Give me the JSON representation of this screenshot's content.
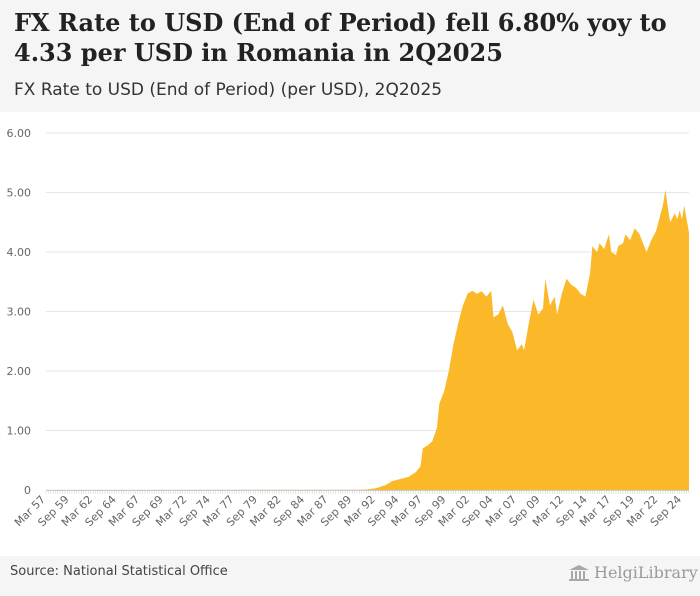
{
  "header": {
    "title": "FX Rate to USD (End of Period) fell 6.80% yoy to 4.33 per USD in Romania in 2Q2025",
    "subtitle": "FX Rate to USD (End of Period) (per USD), 2Q2025"
  },
  "footer": {
    "source": "Source: National Statistical Office",
    "logo_text": "HelgiLibrary",
    "logo_icon": "library-building-icon"
  },
  "colors": {
    "area": "#fbb829",
    "grid": "#e6e6e6",
    "axis_text": "#666666"
  },
  "chart_data": {
    "type": "area",
    "title": "FX Rate to USD (End of Period) (per USD), 2Q2025",
    "xlabel": "",
    "ylabel": "",
    "ylim": [
      0,
      6
    ],
    "yticks": [
      0,
      1,
      2,
      3,
      4,
      5,
      6
    ],
    "ytick_labels": [
      "0",
      "1.00",
      "2.00",
      "3.00",
      "4.00",
      "5.00",
      "6.00"
    ],
    "xtick_labels": [
      "Mar 57",
      "Sep 59",
      "Mar 62",
      "Sep 64",
      "Mar 67",
      "Sep 69",
      "Mar 72",
      "Sep 74",
      "Mar 77",
      "Sep 79",
      "Mar 82",
      "Sep 84",
      "Mar 87",
      "Sep 89",
      "Mar 92",
      "Sep 94",
      "Mar 97",
      "Sep 99",
      "Mar 02",
      "Sep 04",
      "Mar 07",
      "Sep 09",
      "Mar 12",
      "Sep 14",
      "Mar 17",
      "Sep 19",
      "Mar 22",
      "Sep 24"
    ],
    "x_start": 1957.0,
    "x_end": 2025.25,
    "series": [
      {
        "name": "FX Rate to USD (End of Period)",
        "points": [
          [
            1957.0,
            0.0
          ],
          [
            1990.0,
            0.002
          ],
          [
            1991.0,
            0.008
          ],
          [
            1992.0,
            0.03
          ],
          [
            1993.0,
            0.08
          ],
          [
            1993.75,
            0.15
          ],
          [
            1994.5,
            0.18
          ],
          [
            1995.5,
            0.22
          ],
          [
            1996.25,
            0.3
          ],
          [
            1996.75,
            0.4
          ],
          [
            1997.0,
            0.7
          ],
          [
            1997.5,
            0.75
          ],
          [
            1998.0,
            0.82
          ],
          [
            1998.5,
            1.05
          ],
          [
            1998.75,
            1.45
          ],
          [
            1999.25,
            1.65
          ],
          [
            1999.75,
            2.0
          ],
          [
            2000.25,
            2.45
          ],
          [
            2000.75,
            2.8
          ],
          [
            2001.25,
            3.1
          ],
          [
            2001.75,
            3.3
          ],
          [
            2002.25,
            3.35
          ],
          [
            2002.75,
            3.3
          ],
          [
            2003.25,
            3.34
          ],
          [
            2003.75,
            3.25
          ],
          [
            2004.25,
            3.35
          ],
          [
            2004.5,
            2.9
          ],
          [
            2005.0,
            2.95
          ],
          [
            2005.5,
            3.1
          ],
          [
            2006.0,
            2.8
          ],
          [
            2006.5,
            2.65
          ],
          [
            2007.0,
            2.35
          ],
          [
            2007.5,
            2.45
          ],
          [
            2007.75,
            2.35
          ],
          [
            2008.25,
            2.8
          ],
          [
            2008.75,
            3.2
          ],
          [
            2009.25,
            2.95
          ],
          [
            2009.75,
            3.05
          ],
          [
            2010.0,
            3.55
          ],
          [
            2010.5,
            3.1
          ],
          [
            2011.0,
            3.25
          ],
          [
            2011.25,
            2.95
          ],
          [
            2011.75,
            3.3
          ],
          [
            2012.25,
            3.55
          ],
          [
            2012.75,
            3.45
          ],
          [
            2013.25,
            3.4
          ],
          [
            2013.75,
            3.3
          ],
          [
            2014.25,
            3.25
          ],
          [
            2014.75,
            3.65
          ],
          [
            2015.0,
            4.1
          ],
          [
            2015.5,
            4.0
          ],
          [
            2015.75,
            4.15
          ],
          [
            2016.25,
            4.05
          ],
          [
            2016.75,
            4.3
          ],
          [
            2017.0,
            4.0
          ],
          [
            2017.5,
            3.95
          ],
          [
            2017.75,
            4.1
          ],
          [
            2018.25,
            4.15
          ],
          [
            2018.5,
            4.3
          ],
          [
            2019.0,
            4.2
          ],
          [
            2019.5,
            4.4
          ],
          [
            2020.0,
            4.3
          ],
          [
            2020.5,
            4.1
          ],
          [
            2020.75,
            4.0
          ],
          [
            2021.25,
            4.2
          ],
          [
            2021.75,
            4.35
          ],
          [
            2022.0,
            4.5
          ],
          [
            2022.5,
            4.8
          ],
          [
            2022.75,
            5.05
          ],
          [
            2023.0,
            4.75
          ],
          [
            2023.25,
            4.5
          ],
          [
            2023.75,
            4.65
          ],
          [
            2024.0,
            4.55
          ],
          [
            2024.25,
            4.7
          ],
          [
            2024.5,
            4.55
          ],
          [
            2024.75,
            4.78
          ],
          [
            2025.0,
            4.55
          ],
          [
            2025.25,
            4.33
          ]
        ]
      }
    ]
  }
}
